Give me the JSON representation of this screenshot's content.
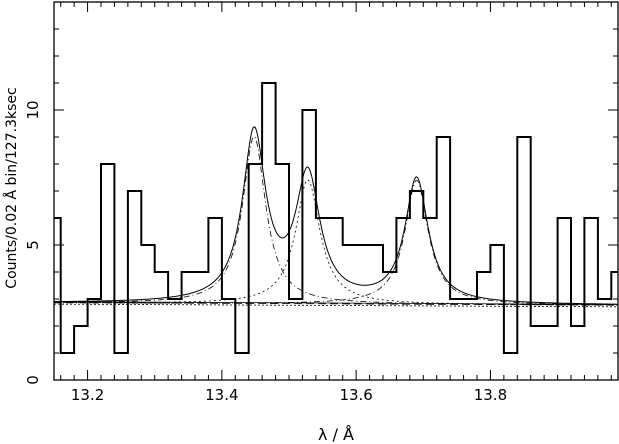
{
  "chart_data": {
    "type": "line",
    "xlabel": "λ / Å",
    "ylabel": "Counts/0.02 Å bin/127.3ksec",
    "xlim": [
      13.15,
      13.99
    ],
    "ylim": [
      0,
      14
    ],
    "x_ticks": [
      13.2,
      13.4,
      13.6,
      13.8
    ],
    "x_tick_labels": [
      "13.2",
      "13.4",
      "13.6",
      "13.8"
    ],
    "y_ticks": [
      0,
      5,
      10
    ],
    "y_tick_labels": [
      "0",
      "5",
      "10"
    ],
    "grid": false,
    "histogram": {
      "bin_edges": [
        13.15,
        13.16,
        13.18,
        13.2,
        13.22,
        13.24,
        13.26,
        13.28,
        13.3,
        13.32,
        13.34,
        13.36,
        13.38,
        13.4,
        13.42,
        13.44,
        13.46,
        13.48,
        13.5,
        13.52,
        13.54,
        13.56,
        13.58,
        13.6,
        13.62,
        13.64,
        13.66,
        13.68,
        13.7,
        13.72,
        13.74,
        13.76,
        13.78,
        13.8,
        13.82,
        13.84,
        13.86,
        13.88,
        13.9,
        13.92,
        13.94,
        13.96,
        13.98,
        13.99
      ],
      "counts": [
        6,
        1,
        2,
        3,
        8,
        1,
        7,
        5,
        4,
        3,
        4,
        4,
        6,
        3,
        1,
        8,
        11,
        8,
        3,
        10,
        6,
        6,
        5,
        5,
        5,
        4,
        6,
        7,
        6,
        9,
        3,
        3,
        4,
        5,
        1,
        9,
        2,
        2,
        6,
        2,
        6,
        3,
        4
      ]
    },
    "model": {
      "continuum": 2.85,
      "continuum_slope_per_A": -0.1,
      "lines": [
        {
          "center": 13.448,
          "amplitude": 6.2,
          "width": 0.021
        },
        {
          "center": 13.528,
          "amplitude": 4.6,
          "width": 0.022
        },
        {
          "center": 13.69,
          "amplitude": 4.6,
          "width": 0.021
        }
      ],
      "background_lines": [
        2.85,
        2.82,
        2.76
      ]
    }
  }
}
